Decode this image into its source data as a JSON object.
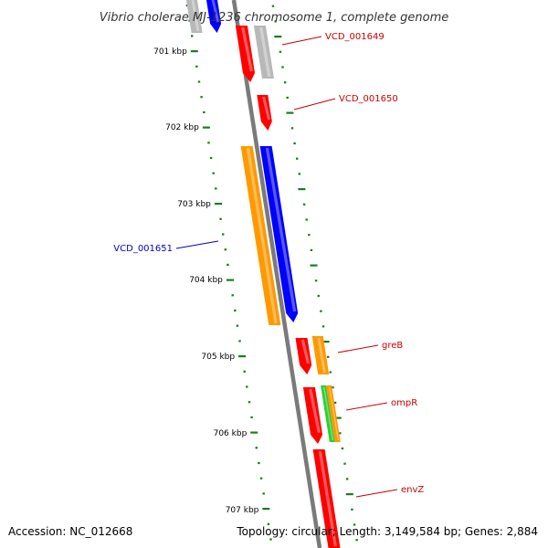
{
  "title": "Vibrio cholerae MJ-1236 chromosome 1, complete genome",
  "footer": {
    "accession": "Accession: NC_012668",
    "summary": "Topology: circular; Length: 3,149,584 bp; Genes: 2,884"
  },
  "colors": {
    "backbone": "#7a7a7a",
    "tick": "#1e7a1e",
    "forward_label": "#cc0000",
    "reverse_label": "#0000cc",
    "red": "#ff0000",
    "orange": "#ff9900",
    "blue": "#0000ff",
    "gray": "#b8b8b8",
    "green": "#33cc33"
  },
  "kbp_labels": [
    "701 kbp",
    "702 kbp",
    "703 kbp",
    "704 kbp",
    "705 kbp",
    "706 kbp",
    "707 kbp"
  ],
  "gene_labels": [
    {
      "text": "VCD_001649",
      "strand": "forward"
    },
    {
      "text": "VCD_001650",
      "strand": "forward"
    },
    {
      "text": "VCD_001651",
      "strand": "reverse"
    },
    {
      "text": "greB",
      "strand": "forward"
    },
    {
      "text": "ompR",
      "strand": "forward"
    },
    {
      "text": "envZ",
      "strand": "forward"
    }
  ],
  "features": [
    {
      "name": "gene-gray-top-left",
      "color": "gray"
    },
    {
      "name": "gene-blue-top",
      "color": "blue"
    },
    {
      "name": "gene-VCD_001649",
      "color": "red"
    },
    {
      "name": "gene-gray-top-right",
      "color": "gray"
    },
    {
      "name": "gene-VCD_001650",
      "color": "red"
    },
    {
      "name": "cds-VCD_001651",
      "color": "orange"
    },
    {
      "name": "gene-VCD_001651",
      "color": "blue"
    },
    {
      "name": "gene-greB",
      "color": "red"
    },
    {
      "name": "cds-greB",
      "color": "orange"
    },
    {
      "name": "gene-ompR",
      "color": "red"
    },
    {
      "name": "repeat-ompR",
      "color": "green"
    },
    {
      "name": "cds-ompR",
      "color": "orange"
    },
    {
      "name": "gene-envZ",
      "color": "red"
    }
  ]
}
